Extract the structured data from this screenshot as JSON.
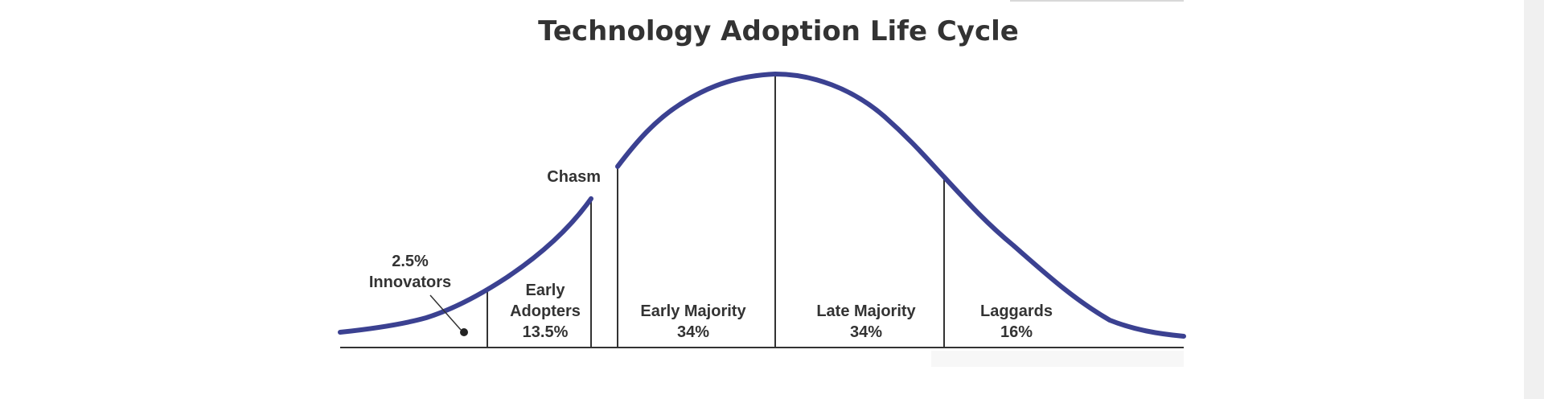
{
  "title": "Technology Adoption Life Cycle",
  "chasm_label": "Chasm",
  "segments": [
    {
      "lines": [
        "2.5%",
        "Innovators"
      ]
    },
    {
      "lines": [
        "Early",
        "Adopters",
        "13.5%"
      ]
    },
    {
      "lines": [
        "Early Majority",
        "34%"
      ]
    },
    {
      "lines": [
        "Late Majority",
        "34%"
      ]
    },
    {
      "lines": [
        "Laggards",
        "16%"
      ]
    }
  ],
  "colors": {
    "curve": "#3b4191",
    "lines": "#333333",
    "text": "#333333"
  }
}
